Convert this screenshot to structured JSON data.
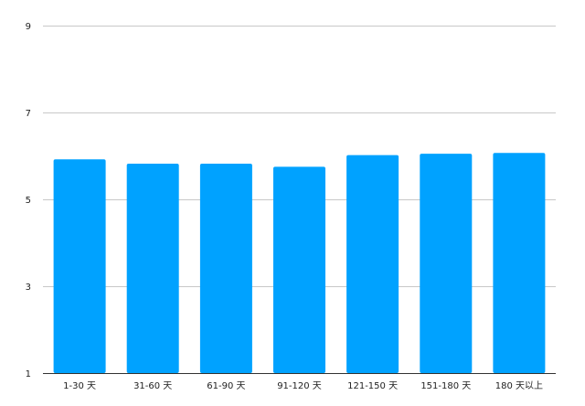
{
  "chart_data": {
    "type": "bar",
    "title": "",
    "xlabel": "",
    "ylabel": "",
    "categories": [
      "1-30 天",
      "31-60 天",
      "61-90 天",
      "91-120 天",
      "121-150 天",
      "151-180 天",
      "180 天以上"
    ],
    "values": [
      5.92,
      5.82,
      5.82,
      5.75,
      6.02,
      6.05,
      6.07
    ],
    "ylim": [
      1,
      9
    ],
    "yticks": [
      1,
      3,
      5,
      7,
      9
    ],
    "grid": true,
    "legend": "none",
    "bar_color": "#00A2FF"
  }
}
